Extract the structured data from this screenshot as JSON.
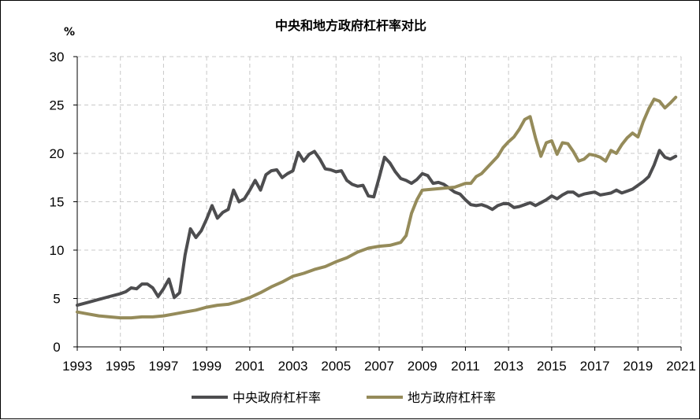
{
  "chart_data": {
    "type": "line",
    "title": "中央和地方政府杠杆率对比",
    "ylabel": "%",
    "xlabel": "",
    "xlim": [
      1993,
      2021
    ],
    "ylim": [
      0,
      30
    ],
    "xticks": [
      "1993",
      "1995",
      "1997",
      "1999",
      "2001",
      "2003",
      "2005",
      "2007",
      "2009",
      "2011",
      "2013",
      "2015",
      "2017",
      "2019",
      "2021"
    ],
    "yticks": [
      "0",
      "5",
      "10",
      "15",
      "20",
      "25",
      "30"
    ],
    "grid": true,
    "legend_position": "bottom",
    "series": [
      {
        "name": "中央政府杠杆率",
        "color": "#4d4d4f",
        "points": [
          [
            1993.0,
            4.3
          ],
          [
            1993.5,
            4.6
          ],
          [
            1994.0,
            4.9
          ],
          [
            1994.5,
            5.2
          ],
          [
            1995.0,
            5.5
          ],
          [
            1995.25,
            5.7
          ],
          [
            1995.5,
            6.1
          ],
          [
            1995.75,
            6.0
          ],
          [
            1996.0,
            6.5
          ],
          [
            1996.25,
            6.5
          ],
          [
            1996.5,
            6.1
          ],
          [
            1996.75,
            5.2
          ],
          [
            1997.0,
            6.0
          ],
          [
            1997.25,
            7.0
          ],
          [
            1997.5,
            5.1
          ],
          [
            1997.75,
            5.6
          ],
          [
            1998.0,
            9.5
          ],
          [
            1998.25,
            12.2
          ],
          [
            1998.5,
            11.3
          ],
          [
            1998.75,
            12.0
          ],
          [
            1999.0,
            13.2
          ],
          [
            1999.25,
            14.6
          ],
          [
            1999.5,
            13.3
          ],
          [
            1999.75,
            13.9
          ],
          [
            2000.0,
            14.2
          ],
          [
            2000.25,
            16.2
          ],
          [
            2000.5,
            15.0
          ],
          [
            2000.75,
            15.3
          ],
          [
            2001.0,
            16.2
          ],
          [
            2001.25,
            17.2
          ],
          [
            2001.5,
            16.2
          ],
          [
            2001.75,
            17.8
          ],
          [
            2002.0,
            18.2
          ],
          [
            2002.25,
            18.3
          ],
          [
            2002.5,
            17.5
          ],
          [
            2002.75,
            17.9
          ],
          [
            2003.0,
            18.2
          ],
          [
            2003.25,
            20.1
          ],
          [
            2003.5,
            19.2
          ],
          [
            2003.75,
            19.9
          ],
          [
            2004.0,
            20.2
          ],
          [
            2004.25,
            19.4
          ],
          [
            2004.5,
            18.4
          ],
          [
            2004.75,
            18.3
          ],
          [
            2005.0,
            18.1
          ],
          [
            2005.25,
            18.2
          ],
          [
            2005.5,
            17.2
          ],
          [
            2005.75,
            16.8
          ],
          [
            2006.0,
            16.6
          ],
          [
            2006.25,
            16.7
          ],
          [
            2006.5,
            15.6
          ],
          [
            2006.75,
            15.5
          ],
          [
            2007.0,
            17.5
          ],
          [
            2007.25,
            19.6
          ],
          [
            2007.5,
            19.0
          ],
          [
            2007.75,
            18.1
          ],
          [
            2008.0,
            17.4
          ],
          [
            2008.25,
            17.2
          ],
          [
            2008.5,
            16.9
          ],
          [
            2008.75,
            17.3
          ],
          [
            2009.0,
            17.9
          ],
          [
            2009.25,
            17.7
          ],
          [
            2009.5,
            16.9
          ],
          [
            2009.75,
            17.0
          ],
          [
            2010.0,
            16.8
          ],
          [
            2010.25,
            16.4
          ],
          [
            2010.5,
            16.0
          ],
          [
            2010.75,
            15.8
          ],
          [
            2011.0,
            15.2
          ],
          [
            2011.25,
            14.7
          ],
          [
            2011.5,
            14.6
          ],
          [
            2011.75,
            14.7
          ],
          [
            2012.0,
            14.5
          ],
          [
            2012.25,
            14.2
          ],
          [
            2012.5,
            14.6
          ],
          [
            2012.75,
            14.8
          ],
          [
            2013.0,
            14.8
          ],
          [
            2013.25,
            14.4
          ],
          [
            2013.5,
            14.5
          ],
          [
            2013.75,
            14.7
          ],
          [
            2014.0,
            14.9
          ],
          [
            2014.25,
            14.6
          ],
          [
            2014.5,
            14.9
          ],
          [
            2014.75,
            15.2
          ],
          [
            2015.0,
            15.6
          ],
          [
            2015.25,
            15.3
          ],
          [
            2015.5,
            15.7
          ],
          [
            2015.75,
            16.0
          ],
          [
            2016.0,
            16.0
          ],
          [
            2016.25,
            15.6
          ],
          [
            2016.5,
            15.8
          ],
          [
            2016.75,
            15.9
          ],
          [
            2017.0,
            16.0
          ],
          [
            2017.25,
            15.7
          ],
          [
            2017.5,
            15.8
          ],
          [
            2017.75,
            15.9
          ],
          [
            2018.0,
            16.2
          ],
          [
            2018.25,
            15.9
          ],
          [
            2018.5,
            16.1
          ],
          [
            2018.75,
            16.3
          ],
          [
            2019.0,
            16.7
          ],
          [
            2019.25,
            17.1
          ],
          [
            2019.5,
            17.6
          ],
          [
            2019.75,
            18.8
          ],
          [
            2020.0,
            20.3
          ],
          [
            2020.25,
            19.6
          ],
          [
            2020.5,
            19.4
          ],
          [
            2020.75,
            19.7
          ]
        ]
      },
      {
        "name": "地方政府杠杆率",
        "color": "#958b5a",
        "points": [
          [
            1993.0,
            3.6
          ],
          [
            1993.5,
            3.4
          ],
          [
            1994.0,
            3.2
          ],
          [
            1994.5,
            3.1
          ],
          [
            1995.0,
            3.0
          ],
          [
            1995.5,
            3.0
          ],
          [
            1996.0,
            3.1
          ],
          [
            1996.5,
            3.1
          ],
          [
            1997.0,
            3.2
          ],
          [
            1997.5,
            3.4
          ],
          [
            1998.0,
            3.6
          ],
          [
            1998.5,
            3.8
          ],
          [
            1999.0,
            4.1
          ],
          [
            1999.5,
            4.3
          ],
          [
            2000.0,
            4.4
          ],
          [
            2000.5,
            4.7
          ],
          [
            2001.0,
            5.1
          ],
          [
            2001.5,
            5.6
          ],
          [
            2002.0,
            6.2
          ],
          [
            2002.5,
            6.7
          ],
          [
            2003.0,
            7.3
          ],
          [
            2003.5,
            7.6
          ],
          [
            2004.0,
            8.0
          ],
          [
            2004.5,
            8.3
          ],
          [
            2005.0,
            8.8
          ],
          [
            2005.5,
            9.2
          ],
          [
            2006.0,
            9.8
          ],
          [
            2006.5,
            10.2
          ],
          [
            2007.0,
            10.4
          ],
          [
            2007.5,
            10.5
          ],
          [
            2008.0,
            10.8
          ],
          [
            2008.25,
            11.5
          ],
          [
            2008.5,
            13.8
          ],
          [
            2008.75,
            15.2
          ],
          [
            2009.0,
            16.2
          ],
          [
            2009.5,
            16.3
          ],
          [
            2010.0,
            16.4
          ],
          [
            2010.5,
            16.5
          ],
          [
            2011.0,
            16.9
          ],
          [
            2011.25,
            16.9
          ],
          [
            2011.5,
            17.6
          ],
          [
            2011.75,
            17.9
          ],
          [
            2012.0,
            18.5
          ],
          [
            2012.25,
            19.1
          ],
          [
            2012.5,
            19.7
          ],
          [
            2012.75,
            20.6
          ],
          [
            2013.0,
            21.2
          ],
          [
            2013.25,
            21.7
          ],
          [
            2013.5,
            22.5
          ],
          [
            2013.75,
            23.5
          ],
          [
            2014.0,
            23.8
          ],
          [
            2014.25,
            21.6
          ],
          [
            2014.5,
            19.7
          ],
          [
            2014.75,
            21.1
          ],
          [
            2015.0,
            21.3
          ],
          [
            2015.25,
            19.9
          ],
          [
            2015.5,
            21.1
          ],
          [
            2015.75,
            21.0
          ],
          [
            2016.0,
            20.2
          ],
          [
            2016.25,
            19.2
          ],
          [
            2016.5,
            19.4
          ],
          [
            2016.75,
            19.9
          ],
          [
            2017.0,
            19.8
          ],
          [
            2017.25,
            19.6
          ],
          [
            2017.5,
            19.2
          ],
          [
            2017.75,
            20.3
          ],
          [
            2018.0,
            20.0
          ],
          [
            2018.25,
            20.9
          ],
          [
            2018.5,
            21.6
          ],
          [
            2018.75,
            22.1
          ],
          [
            2019.0,
            21.7
          ],
          [
            2019.25,
            23.3
          ],
          [
            2019.5,
            24.6
          ],
          [
            2019.75,
            25.6
          ],
          [
            2020.0,
            25.4
          ],
          [
            2020.25,
            24.7
          ],
          [
            2020.5,
            25.2
          ],
          [
            2020.75,
            25.8
          ]
        ]
      }
    ]
  }
}
